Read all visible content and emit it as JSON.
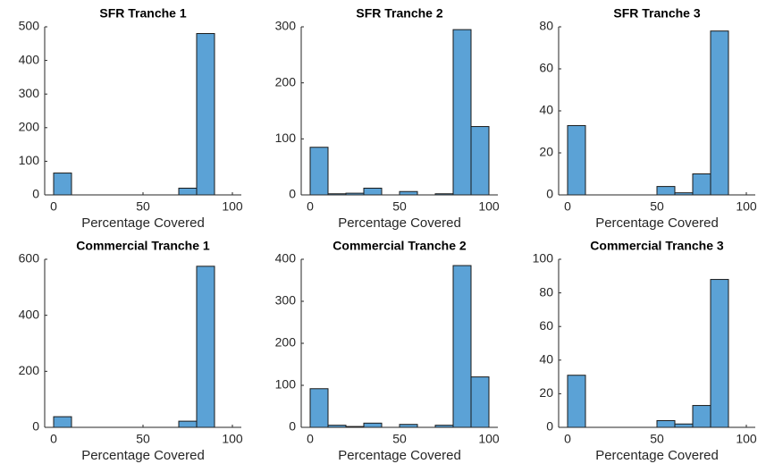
{
  "chart_data": [
    {
      "type": "histogram",
      "title": "SFR Tranche 1",
      "xlabel": "Percentage Covered",
      "color": "#5ba2d6",
      "bins": [
        0,
        10,
        20,
        30,
        40,
        50,
        60,
        70,
        80,
        90
      ],
      "values": [
        65,
        0,
        0,
        0,
        0,
        0,
        0,
        20,
        480
      ],
      "xlim": [
        -5,
        105
      ],
      "xticks": [
        0,
        50,
        100
      ],
      "ylim": [
        0,
        500
      ],
      "yticks": [
        0,
        100,
        200,
        300,
        400,
        500
      ]
    },
    {
      "type": "histogram",
      "title": "SFR Tranche 2",
      "xlabel": "Percentage Covered",
      "color": "#5ba2d6",
      "bins": [
        0,
        10,
        20,
        30,
        40,
        50,
        60,
        70,
        80,
        90,
        100
      ],
      "values": [
        85,
        2,
        3,
        12,
        0,
        6,
        0,
        2,
        295,
        122
      ],
      "xlim": [
        -5,
        105
      ],
      "xticks": [
        0,
        50,
        100
      ],
      "ylim": [
        0,
        300
      ],
      "yticks": [
        0,
        100,
        200,
        300
      ]
    },
    {
      "type": "histogram",
      "title": "SFR Tranche 3",
      "xlabel": "Percentage Covered",
      "color": "#5ba2d6",
      "bins": [
        0,
        10,
        20,
        30,
        40,
        50,
        60,
        70,
        80,
        90
      ],
      "values": [
        33,
        0,
        0,
        0,
        0,
        4,
        1,
        10,
        78
      ],
      "xlim": [
        -5,
        105
      ],
      "xticks": [
        0,
        50,
        100
      ],
      "ylim": [
        0,
        80
      ],
      "yticks": [
        0,
        20,
        40,
        60,
        80
      ]
    },
    {
      "type": "histogram",
      "title": "Commercial Tranche 1",
      "xlabel": "Percentage Covered",
      "color": "#5ba2d6",
      "bins": [
        0,
        10,
        20,
        30,
        40,
        50,
        60,
        70,
        80,
        90
      ],
      "values": [
        38,
        0,
        0,
        0,
        0,
        0,
        0,
        22,
        575
      ],
      "xlim": [
        -5,
        105
      ],
      "xticks": [
        0,
        50,
        100
      ],
      "ylim": [
        0,
        600
      ],
      "yticks": [
        0,
        200,
        400,
        600
      ]
    },
    {
      "type": "histogram",
      "title": "Commercial Tranche 2",
      "xlabel": "Percentage Covered",
      "color": "#5ba2d6",
      "bins": [
        0,
        10,
        20,
        30,
        40,
        50,
        60,
        70,
        80,
        90,
        100
      ],
      "values": [
        92,
        5,
        2,
        10,
        0,
        7,
        0,
        5,
        385,
        120
      ],
      "xlim": [
        -5,
        105
      ],
      "xticks": [
        0,
        50,
        100
      ],
      "ylim": [
        0,
        400
      ],
      "yticks": [
        0,
        100,
        200,
        300,
        400
      ]
    },
    {
      "type": "histogram",
      "title": "Commercial Tranche 3",
      "xlabel": "Percentage Covered",
      "color": "#5ba2d6",
      "bins": [
        0,
        10,
        20,
        30,
        40,
        50,
        60,
        70,
        80,
        90
      ],
      "values": [
        31,
        0,
        0,
        0,
        0,
        4,
        2,
        13,
        88
      ],
      "xlim": [
        -5,
        105
      ],
      "xticks": [
        0,
        50,
        100
      ],
      "ylim": [
        0,
        100
      ],
      "yticks": [
        0,
        20,
        40,
        60,
        80,
        100
      ]
    }
  ]
}
